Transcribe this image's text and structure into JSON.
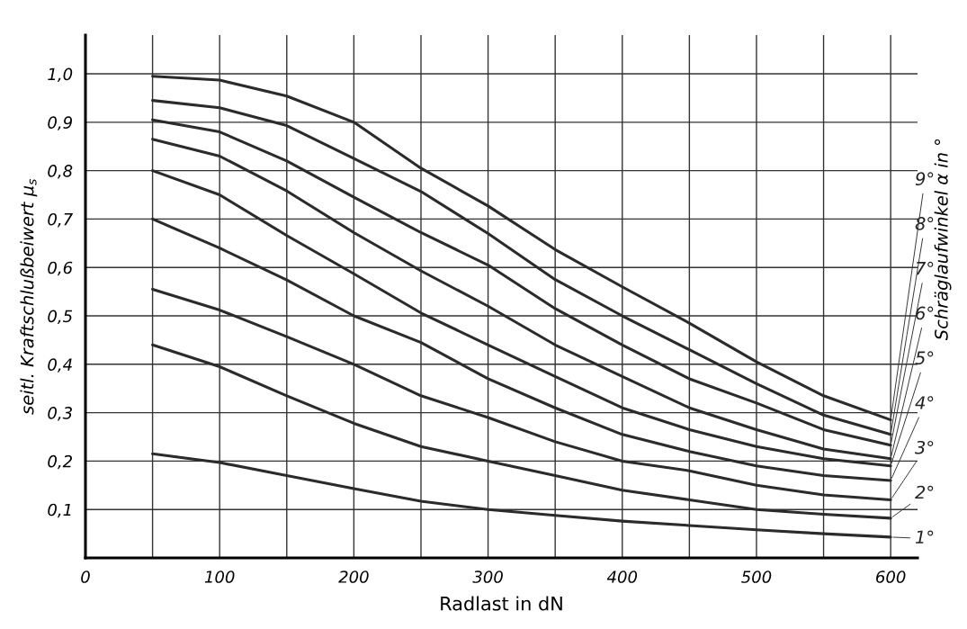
{
  "chart_data": {
    "type": "line",
    "xlabel": "Radlast in dN",
    "ylabel": "seitl. Kraftschlußbeiwert μ$_{s}$",
    "legend_title": "Schräglaufwinkel α in °",
    "x": [
      50,
      100,
      150,
      200,
      250,
      300,
      350,
      400,
      450,
      500,
      550,
      600
    ],
    "series": [
      {
        "name": "1°",
        "color": "#2b2b2b",
        "values": [
          0.215,
          0.197,
          0.17,
          0.143,
          0.117,
          0.1,
          0.088,
          0.076,
          0.067,
          0.058,
          0.05,
          0.043
        ]
      },
      {
        "name": "2°",
        "color": "#2b2b2b",
        "values": [
          0.44,
          0.395,
          0.335,
          0.278,
          0.23,
          0.2,
          0.17,
          0.14,
          0.12,
          0.1,
          0.09,
          0.082
        ]
      },
      {
        "name": "3°",
        "color": "#2b2b2b",
        "values": [
          0.555,
          0.512,
          0.457,
          0.4,
          0.335,
          0.29,
          0.24,
          0.2,
          0.18,
          0.15,
          0.13,
          0.12
        ]
      },
      {
        "name": "4°",
        "color": "#2b2b2b",
        "values": [
          0.7,
          0.64,
          0.574,
          0.5,
          0.445,
          0.37,
          0.31,
          0.255,
          0.22,
          0.19,
          0.17,
          0.16
        ]
      },
      {
        "name": "5°",
        "color": "#2b2b2b",
        "values": [
          0.8,
          0.75,
          0.666,
          0.587,
          0.506,
          0.44,
          0.375,
          0.31,
          0.265,
          0.23,
          0.205,
          0.19
        ]
      },
      {
        "name": "6°",
        "color": "#2b2b2b",
        "values": [
          0.865,
          0.83,
          0.758,
          0.672,
          0.593,
          0.52,
          0.44,
          0.375,
          0.31,
          0.265,
          0.225,
          0.205
        ]
      },
      {
        "name": "7°",
        "color": "#2b2b2b",
        "values": [
          0.905,
          0.88,
          0.82,
          0.745,
          0.672,
          0.605,
          0.515,
          0.44,
          0.37,
          0.32,
          0.265,
          0.233
        ]
      },
      {
        "name": "8°",
        "color": "#2b2b2b",
        "values": [
          0.945,
          0.93,
          0.893,
          0.825,
          0.757,
          0.67,
          0.575,
          0.5,
          0.43,
          0.36,
          0.295,
          0.255
        ]
      },
      {
        "name": "9°",
        "color": "#2b2b2b",
        "values": [
          0.995,
          0.987,
          0.954,
          0.9,
          0.805,
          0.727,
          0.637,
          0.56,
          0.485,
          0.405,
          0.335,
          0.285
        ]
      }
    ],
    "xlim": [
      0,
      620
    ],
    "ylim": [
      0,
      1.08
    ],
    "xticks": [
      0,
      {
        "value": 50,
        "label": null
      },
      100,
      {
        "value": 150,
        "label": null
      },
      200,
      {
        "value": 250,
        "label": null
      },
      300,
      {
        "value": 350,
        "label": null
      },
      400,
      {
        "value": 450,
        "label": null
      },
      500,
      {
        "value": 550,
        "label": null
      },
      600
    ],
    "yticks": [
      {
        "value": 0.1,
        "label": "0,1"
      },
      {
        "value": 0.2,
        "label": "0,2"
      },
      {
        "value": 0.3,
        "label": "0,3"
      },
      {
        "value": 0.4,
        "label": "0,4"
      },
      {
        "value": 0.5,
        "label": "0,5"
      },
      {
        "value": 0.6,
        "label": "0,6"
      },
      {
        "value": 0.7,
        "label": "0,7"
      },
      {
        "value": 0.8,
        "label": "0,8"
      },
      {
        "value": 0.9,
        "label": "0,9"
      },
      {
        "value": 1.0,
        "label": "1,0"
      }
    ],
    "grid": true,
    "legend": "right",
    "marker": "none",
    "line_style": "solid"
  }
}
